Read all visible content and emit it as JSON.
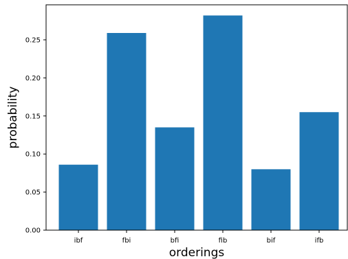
{
  "chart_data": {
    "type": "bar",
    "title": "",
    "xlabel": "orderings",
    "ylabel": "probability",
    "categories": [
      "ibf",
      "fbi",
      "bfi",
      "fib",
      "bif",
      "ifb"
    ],
    "values": [
      0.086,
      0.259,
      0.135,
      0.282,
      0.08,
      0.155
    ],
    "ylim": [
      0,
      0.296
    ],
    "yticks": [
      0.0,
      0.05,
      0.1,
      0.15,
      0.2,
      0.25
    ],
    "ytick_labels": [
      "0.00",
      "0.05",
      "0.10",
      "0.15",
      "0.20",
      "0.25"
    ],
    "bar_color": "#1f77b4",
    "grid": false,
    "legend": "none"
  }
}
